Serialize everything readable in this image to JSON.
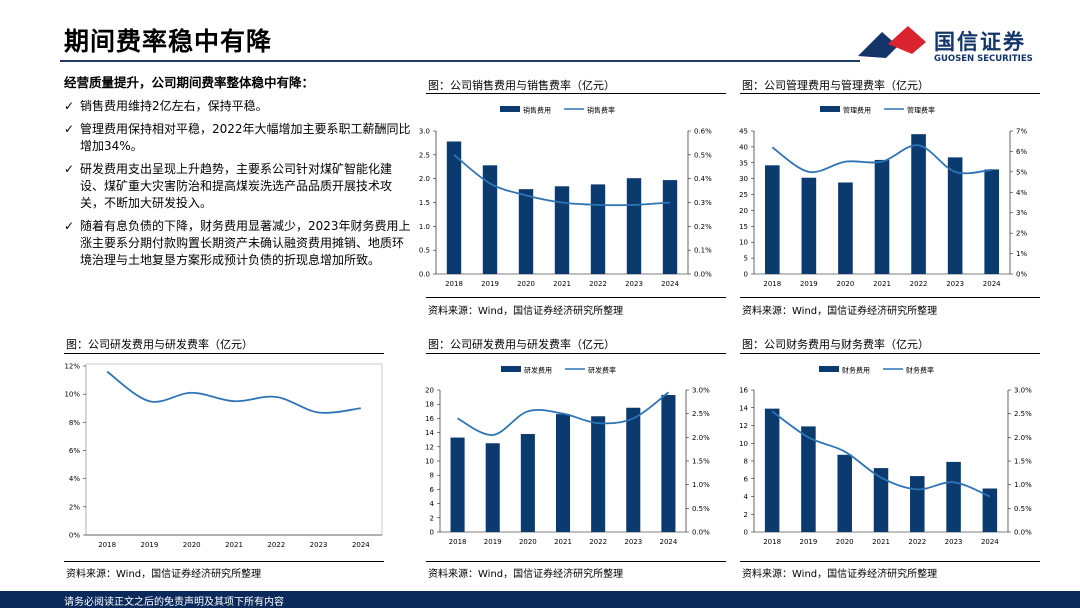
{
  "page": {
    "title": "期间费率稳中有降",
    "logo_cn": "国信证券",
    "logo_en": "GUOSEN SECURITIES",
    "footer": "请务必阅读正文之后的免责声明及其项下所有内容",
    "colors": {
      "bar": "#0b3a6e",
      "line": "#2e74b5",
      "footer": "#0b2a5c",
      "logo_red": "#d9232e",
      "logo_blue": "#14356a"
    }
  },
  "text": {
    "heading": "经营质量提升，公司期间费率整体稳中有降：",
    "bullet_mark": "✓",
    "bullets": [
      "销售费用维持2亿左右，保持平稳。",
      "管理费用保持相对平稳，2022年大幅增加主要系职工薪酬同比增加34%。",
      "研发费用支出呈现上升趋势，主要系公司针对煤矿智能化建设、煤矿重大灾害防治和提高煤炭洗选产品品质开展技术攻关，不断加大研发投入。",
      "随着有息负债的下降，财务费用显著减少，2023年财务费用上涨主要系分期付款购置长期资产未确认融资费用摊销、地质环境治理与土地复垦方案形成预计负债的折现息增加所致。"
    ]
  },
  "chart_data": [
    {
      "id": "sales",
      "panel_title": "图：公司销售费用与销售费率（亿元）",
      "source": "资料来源：Wind，国信证券经济研究所整理",
      "type": "bar",
      "categories": [
        "2018",
        "2019",
        "2020",
        "2021",
        "2022",
        "2023",
        "2024"
      ],
      "series": [
        {
          "name": "销售费用",
          "type": "bar",
          "axis": "left",
          "values": [
            2.78,
            2.28,
            1.78,
            1.84,
            1.88,
            2.01,
            1.97
          ]
        },
        {
          "name": "销售费率",
          "type": "line",
          "axis": "right",
          "values": [
            0.5,
            0.38,
            0.33,
            0.3,
            0.29,
            0.29,
            0.3
          ]
        }
      ],
      "y_left": {
        "min": 0,
        "max": 3.0,
        "ticks": [
          "0.0",
          "0.5",
          "1.0",
          "1.5",
          "2.0",
          "2.5",
          "3.0"
        ]
      },
      "y_right": {
        "min": 0,
        "max": 0.6,
        "ticks": [
          "0.0%",
          "0.1%",
          "0.2%",
          "0.3%",
          "0.4%",
          "0.5%",
          "0.6%"
        ]
      },
      "legend": "top-center"
    },
    {
      "id": "admin",
      "panel_title": "图：公司管理费用与管理费率（亿元）",
      "source": "资料来源：Wind，国信证券经济研究所整理",
      "type": "bar",
      "categories": [
        "2018",
        "2019",
        "2020",
        "2021",
        "2022",
        "2023",
        "2024"
      ],
      "series": [
        {
          "name": "管理费用",
          "type": "bar",
          "axis": "left",
          "values": [
            34.2,
            30.3,
            28.8,
            35.9,
            44.0,
            36.7,
            32.9
          ]
        },
        {
          "name": "管理费率",
          "type": "line",
          "axis": "right",
          "values": [
            6.2,
            5.0,
            5.5,
            5.5,
            6.3,
            5.0,
            5.1
          ]
        }
      ],
      "y_left": {
        "min": 0,
        "max": 45,
        "ticks": [
          "0",
          "5",
          "10",
          "15",
          "20",
          "25",
          "30",
          "35",
          "40",
          "45"
        ]
      },
      "y_right": {
        "min": 0,
        "max": 7,
        "ticks": [
          "0%",
          "1%",
          "2%",
          "3%",
          "4%",
          "5%",
          "6%",
          "7%"
        ]
      },
      "legend": "top-center"
    },
    {
      "id": "rd_rate",
      "panel_title": "图：公司研发费用与研发费率（亿元）",
      "source": "资料来源：Wind，国信证券经济研究所整理",
      "type": "line",
      "categories": [
        "2018",
        "2019",
        "2020",
        "2021",
        "2022",
        "2023",
        "2024"
      ],
      "series": [
        {
          "name": "",
          "type": "line",
          "axis": "left",
          "values": [
            11.6,
            9.5,
            10.1,
            9.5,
            9.8,
            8.7,
            9.0
          ]
        }
      ],
      "y_left": {
        "min": 0,
        "max": 12,
        "ticks": [
          "0%",
          "2%",
          "4%",
          "6%",
          "8%",
          "10%",
          "12%"
        ]
      },
      "legend": "none"
    },
    {
      "id": "rd",
      "panel_title": "图：公司研发费用与研发费率（亿元）",
      "source": "资料来源：Wind，国信证券经济研究所整理",
      "type": "bar",
      "categories": [
        "2018",
        "2019",
        "2020",
        "2021",
        "2022",
        "2023",
        "2024"
      ],
      "series": [
        {
          "name": "研发费用",
          "type": "bar",
          "axis": "left",
          "values": [
            13.3,
            12.5,
            13.8,
            16.6,
            16.3,
            17.5,
            19.3
          ]
        },
        {
          "name": "研发费率",
          "type": "line",
          "axis": "right",
          "values": [
            2.4,
            2.05,
            2.55,
            2.5,
            2.3,
            2.4,
            2.95
          ]
        }
      ],
      "y_left": {
        "min": 0,
        "max": 20,
        "ticks": [
          "0",
          "2",
          "4",
          "6",
          "8",
          "10",
          "12",
          "14",
          "16",
          "18",
          "20"
        ]
      },
      "y_right": {
        "min": 0,
        "max": 3.0,
        "ticks": [
          "0.0%",
          "0.5%",
          "1.0%",
          "1.5%",
          "2.0%",
          "2.5%",
          "3.0%"
        ]
      },
      "legend": "top-center"
    },
    {
      "id": "fin",
      "panel_title": "图：公司财务费用与财务费率（亿元）",
      "source": "资料来源：Wind，国信证券经济研究所整理",
      "type": "bar",
      "categories": [
        "2018",
        "2019",
        "2020",
        "2021",
        "2022",
        "2023",
        "2024"
      ],
      "series": [
        {
          "name": "财务费用",
          "type": "bar",
          "axis": "left",
          "values": [
            13.9,
            11.9,
            8.7,
            7.2,
            6.3,
            7.9,
            4.9
          ]
        },
        {
          "name": "财务费率",
          "type": "line",
          "axis": "right",
          "values": [
            2.55,
            2.0,
            1.7,
            1.15,
            0.9,
            1.05,
            0.75
          ]
        }
      ],
      "y_left": {
        "min": 0,
        "max": 16,
        "ticks": [
          "0",
          "2",
          "4",
          "6",
          "8",
          "10",
          "12",
          "14",
          "16"
        ]
      },
      "y_right": {
        "min": 0,
        "max": 3.0,
        "ticks": [
          "0.0%",
          "0.5%",
          "1.0%",
          "1.5%",
          "2.0%",
          "2.5%",
          "3.0%"
        ]
      },
      "legend": "top-center"
    }
  ]
}
